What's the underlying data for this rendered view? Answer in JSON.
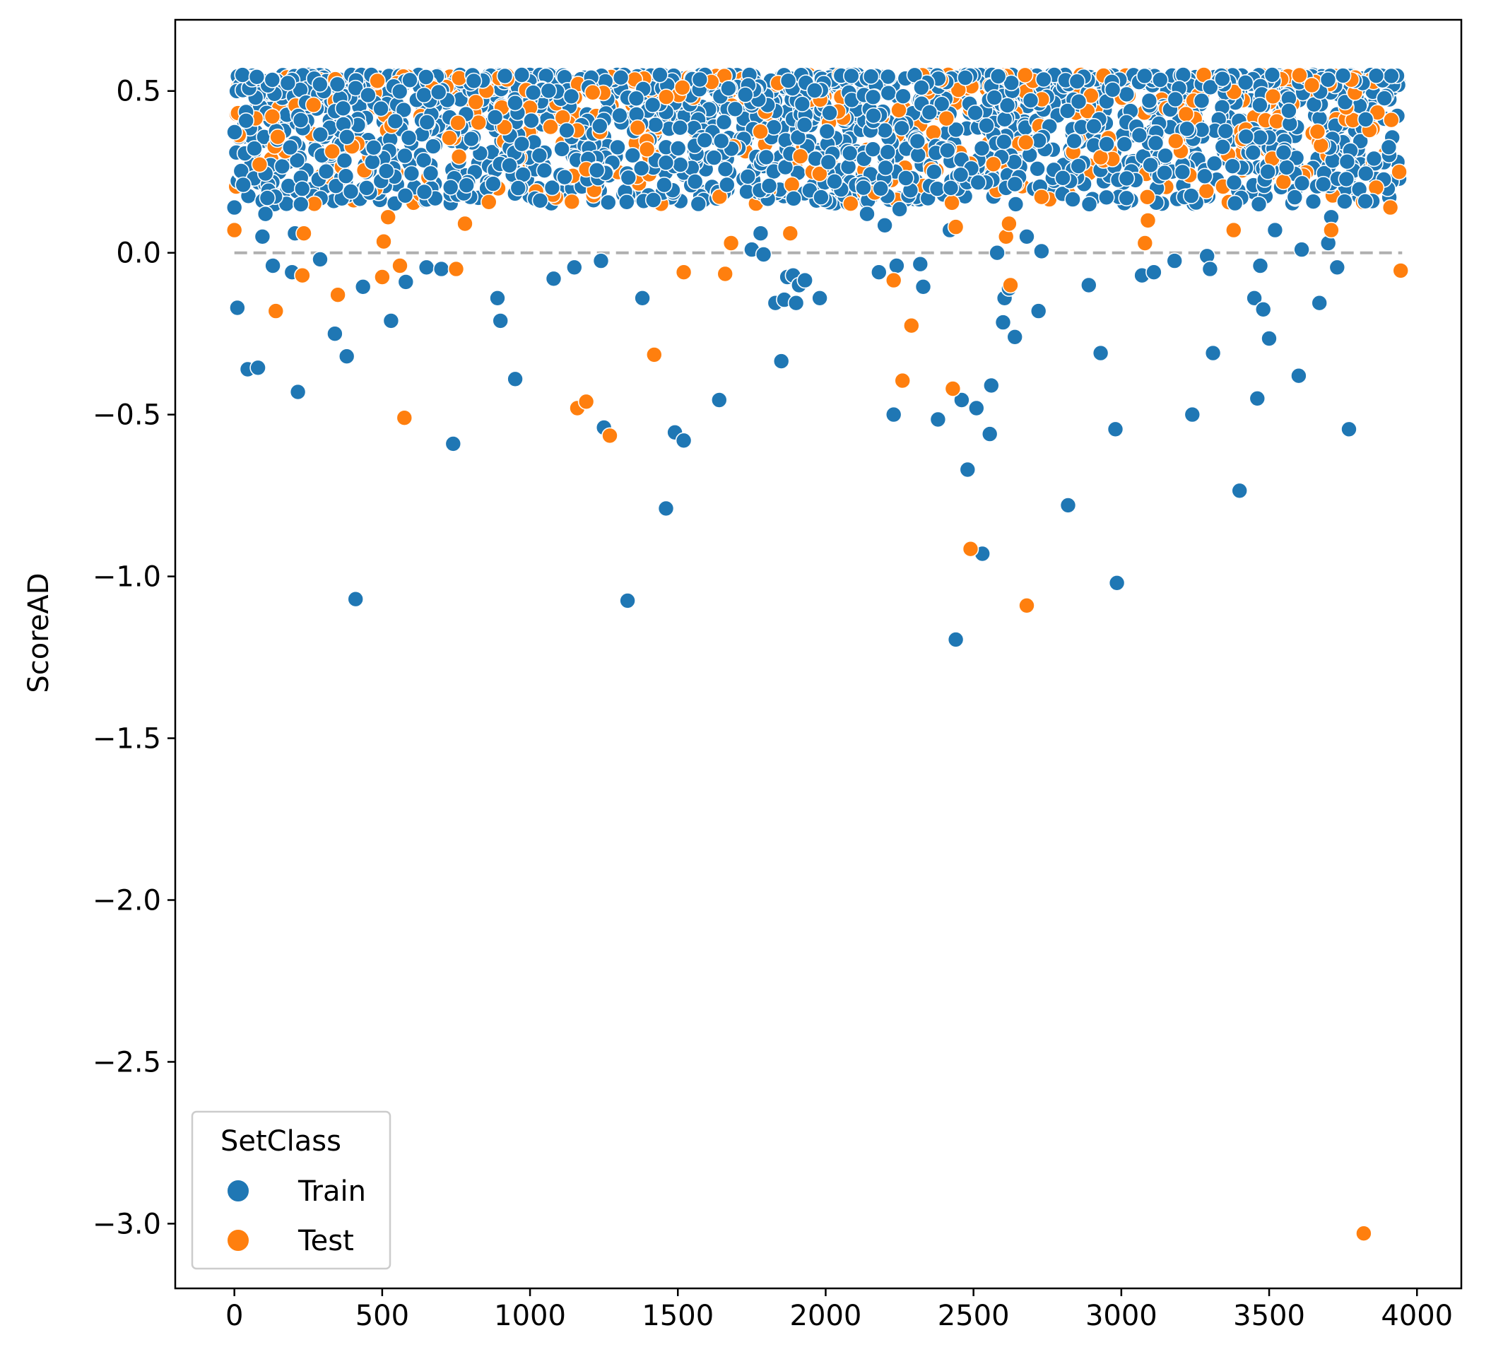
{
  "chart_data": {
    "type": "scatter",
    "title": "",
    "xlabel": "",
    "ylabel": "ScoreAD",
    "xlim": [
      -200,
      4150
    ],
    "ylim": [
      -3.2,
      0.72
    ],
    "x_ticks": [
      0,
      500,
      1000,
      1500,
      2000,
      2500,
      3000,
      3500,
      4000
    ],
    "x_tick_labels": [
      "0",
      "500",
      "1000",
      "1500",
      "2000",
      "2500",
      "3000",
      "3500",
      "4000"
    ],
    "y_ticks": [
      0.5,
      0.0,
      -0.5,
      -1.0,
      -1.5,
      -2.0,
      -2.5,
      -3.0
    ],
    "y_tick_labels": [
      "0.5",
      "0.0",
      "−0.5",
      "−1.0",
      "−1.5",
      "−2.0",
      "−2.5",
      "−3.0"
    ],
    "grid": false,
    "reference_line": {
      "y": 0.0,
      "style": "dashed",
      "color": "#b0b0b0"
    },
    "legend": {
      "title": "SetClass",
      "placement": "bottom-left"
    },
    "band": {
      "y_min": 0.15,
      "y_max": 0.55,
      "x_min": 0,
      "x_max": 3950,
      "n_train": 1900,
      "n_test": 420,
      "note": "dense cloud of points between ~0.15 and ~0.55 across all indices"
    },
    "series": [
      {
        "name": "Train",
        "color": "#1f77b4",
        "x": [
          0,
          10,
          30,
          45,
          80,
          95,
          105,
          130,
          195,
          205,
          215,
          225,
          290,
          340,
          380,
          410,
          435,
          530,
          580,
          650,
          700,
          740,
          890,
          900,
          950,
          960,
          1080,
          1150,
          1240,
          1250,
          1330,
          1380,
          1460,
          1490,
          1520,
          1640,
          1750,
          1780,
          1790,
          1830,
          1850,
          1860,
          1870,
          1890,
          1900,
          1910,
          1930,
          1980,
          2140,
          2180,
          2200,
          2230,
          2240,
          2250,
          2320,
          2330,
          2380,
          2420,
          2440,
          2460,
          2480,
          2510,
          2530,
          2555,
          2560,
          2580,
          2600,
          2605,
          2620,
          2640,
          2680,
          2720,
          2730,
          2820,
          2890,
          2930,
          2980,
          2985,
          3070,
          3110,
          3180,
          3240,
          3290,
          3300,
          3310,
          3400,
          3450,
          3460,
          3470,
          3480,
          3500,
          3520,
          3600,
          3610,
          3670,
          3700,
          3710,
          3730,
          3770
        ],
        "y": [
          0.14,
          -0.17,
          0.21,
          -0.36,
          -0.355,
          0.05,
          0.12,
          -0.04,
          -0.06,
          0.06,
          -0.43,
          0.15,
          -0.02,
          -0.25,
          -0.32,
          -1.07,
          -0.105,
          -0.21,
          -0.09,
          -0.045,
          -0.05,
          -0.59,
          -0.14,
          -0.21,
          -0.39,
          0.2,
          -0.08,
          -0.045,
          -0.025,
          -0.54,
          -1.075,
          -0.14,
          -0.79,
          -0.555,
          -0.58,
          -0.455,
          0.01,
          0.06,
          -0.005,
          -0.155,
          -0.335,
          -0.145,
          -0.075,
          -0.07,
          -0.155,
          -0.1,
          -0.085,
          -0.14,
          0.12,
          -0.06,
          0.085,
          -0.5,
          -0.04,
          0.135,
          -0.035,
          -0.105,
          -0.515,
          0.07,
          -1.195,
          -0.455,
          -0.67,
          -0.48,
          -0.93,
          -0.56,
          -0.41,
          0.0,
          -0.215,
          -0.14,
          -0.11,
          -0.26,
          0.05,
          -0.18,
          0.005,
          -0.78,
          -0.1,
          -0.31,
          -0.545,
          -1.02,
          -0.07,
          -0.06,
          -0.025,
          -0.5,
          -0.01,
          -0.05,
          -0.31,
          -0.735,
          -0.14,
          -0.45,
          -0.04,
          -0.175,
          -0.265,
          0.07,
          -0.38,
          0.01,
          -0.155,
          0.03,
          0.11,
          -0.045,
          -0.545
        ]
      },
      {
        "name": "Test",
        "color": "#ff7f0e",
        "x": [
          0,
          140,
          230,
          235,
          350,
          500,
          505,
          520,
          560,
          575,
          750,
          780,
          1160,
          1190,
          1270,
          1420,
          1520,
          1660,
          1680,
          1880,
          2230,
          2260,
          2290,
          2430,
          2440,
          2490,
          2610,
          2620,
          2625,
          2680,
          3080,
          3090,
          3380,
          3710,
          3820,
          3910,
          3940,
          3945
        ],
        "y": [
          0.07,
          -0.18,
          -0.07,
          0.06,
          -0.13,
          -0.075,
          0.035,
          0.11,
          -0.04,
          -0.51,
          -0.05,
          0.09,
          -0.48,
          -0.46,
          -0.565,
          -0.315,
          -0.06,
          -0.065,
          0.03,
          0.06,
          -0.085,
          -0.395,
          -0.225,
          -0.42,
          0.08,
          -0.915,
          0.05,
          0.09,
          -0.1,
          -1.09,
          0.03,
          0.1,
          0.07,
          0.07,
          -3.03,
          0.14,
          0.25,
          -0.055
        ]
      }
    ]
  }
}
